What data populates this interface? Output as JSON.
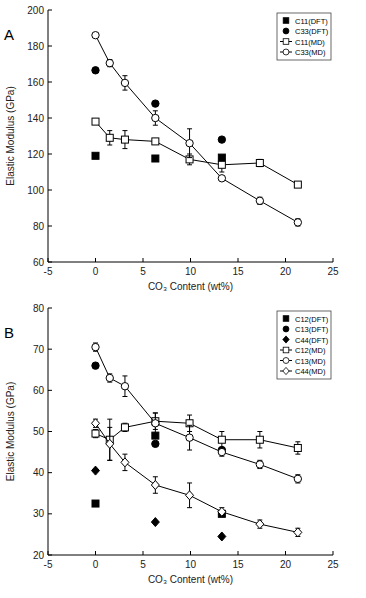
{
  "chart_data": [
    {
      "type": "scatter",
      "title": "A",
      "x_label": "CO₃ Content (wt%)",
      "y_label": "Elastic Modulus (GPa)",
      "xlim": [
        -5,
        25
      ],
      "xticks": [
        -5,
        0,
        5,
        10,
        15,
        20,
        25
      ],
      "ylim": [
        60,
        200
      ],
      "yticks": [
        60,
        80,
        100,
        120,
        140,
        160,
        180,
        200
      ],
      "legend": "upper right",
      "series": [
        {
          "name": "C11(DFT)",
          "type": "scatter",
          "marker": "square",
          "color": "#000000",
          "x": [
            0,
            6.3,
            13.3
          ],
          "values": [
            119,
            117.5,
            118
          ]
        },
        {
          "name": "C33(DFT)",
          "type": "scatter",
          "marker": "circle",
          "color": "#000000",
          "x": [
            0,
            6.3,
            13.3
          ],
          "values": [
            166.5,
            148,
            128
          ]
        },
        {
          "name": "C11(MD)",
          "type": "line",
          "marker": "open-square",
          "color": "#000000",
          "x": [
            0,
            1.5,
            3.1,
            6.3,
            9.9,
            13.3,
            17.3,
            21.3
          ],
          "values": [
            138,
            129,
            128,
            127,
            117,
            114,
            115,
            103
          ],
          "errors": [
            1,
            4,
            5,
            1,
            3,
            4,
            2,
            1
          ]
        },
        {
          "name": "C33(MD)",
          "type": "line",
          "marker": "open-circle",
          "color": "#000000",
          "x": [
            0,
            1.5,
            3.1,
            6.3,
            9.9,
            13.3,
            17.3,
            21.3
          ],
          "values": [
            186,
            170.5,
            159.5,
            140,
            126,
            106.5,
            94,
            82
          ],
          "errors": [
            1,
            2,
            4,
            4,
            8,
            1,
            2,
            2
          ]
        }
      ]
    },
    {
      "type": "scatter",
      "title": "B",
      "x_label": "CO₃ Content (wt%)",
      "y_label": "Elastic Modulus (GPa)",
      "xlim": [
        -5,
        25
      ],
      "xticks": [
        -5,
        0,
        5,
        10,
        15,
        20,
        25
      ],
      "ylim": [
        20,
        80
      ],
      "yticks": [
        20,
        30,
        40,
        50,
        60,
        70,
        80
      ],
      "legend": "upper right",
      "series": [
        {
          "name": "C12(DFT)",
          "type": "scatter",
          "marker": "square",
          "color": "#000000",
          "x": [
            0,
            6.3,
            13.3
          ],
          "values": [
            32.5,
            49,
            30
          ]
        },
        {
          "name": "C13(DFT)",
          "type": "scatter",
          "marker": "circle",
          "color": "#000000",
          "x": [
            0,
            6.3,
            13.3
          ],
          "values": [
            66,
            47,
            45.5
          ]
        },
        {
          "name": "C44(DFT)",
          "type": "scatter",
          "marker": "diamond",
          "color": "#000000",
          "x": [
            0,
            6.3,
            13.3
          ],
          "values": [
            40.5,
            28,
            24.5
          ]
        },
        {
          "name": "C12(MD)",
          "type": "line",
          "marker": "open-square",
          "color": "#000000",
          "x": [
            0,
            1.5,
            3.1,
            6.3,
            9.9,
            13.3,
            17.3,
            21.3
          ],
          "values": [
            49.5,
            48,
            51,
            52.5,
            52,
            48,
            48,
            46
          ],
          "errors": [
            1,
            5,
            1,
            2,
            2,
            2,
            2,
            1.5
          ]
        },
        {
          "name": "C13(MD)",
          "type": "line",
          "marker": "open-circle",
          "color": "#000000",
          "x": [
            0,
            1.5,
            3.1,
            6.3,
            9.9,
            13.3,
            17.3,
            21.3
          ],
          "values": [
            70.5,
            63,
            61,
            52,
            48.5,
            45,
            42,
            38.5
          ],
          "errors": [
            1,
            1,
            2.5,
            2.5,
            3,
            1,
            1,
            1
          ]
        },
        {
          "name": "C44(MD)",
          "type": "line",
          "marker": "open-diamond",
          "color": "#000000",
          "x": [
            0,
            1.5,
            3.1,
            6.3,
            9.9,
            13.3,
            17.3,
            21.3
          ],
          "values": [
            52,
            47,
            42.5,
            37,
            34.5,
            30.5,
            27.5,
            25.5
          ],
          "errors": [
            1,
            4,
            2,
            2,
            3,
            1,
            1,
            1
          ]
        }
      ]
    }
  ]
}
